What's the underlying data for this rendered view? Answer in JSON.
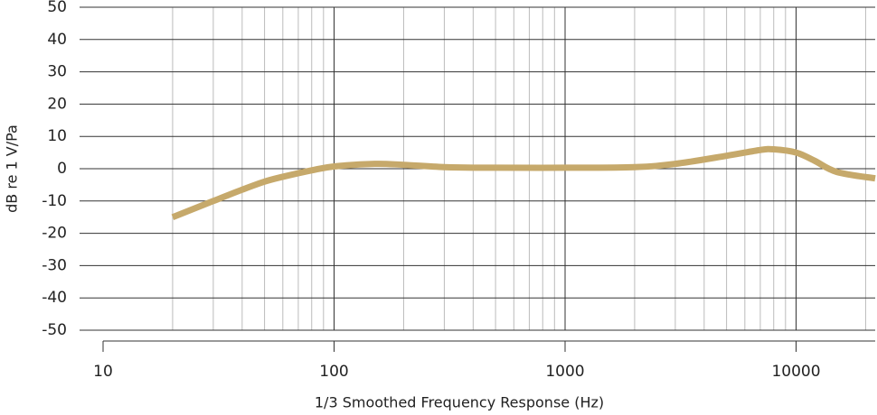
{
  "chart_data": {
    "type": "line",
    "xlabel": "1/3 Smoothed Frequency Response (Hz)",
    "ylabel": "dB re 1 V/Pa",
    "x": [
      20,
      30,
      40,
      50,
      60,
      80,
      100,
      150,
      200,
      300,
      500,
      1000,
      2000,
      3000,
      5000,
      7000,
      8000,
      10000,
      12000,
      15000,
      22000
    ],
    "series": [
      {
        "name": "Frequency response",
        "color": "#c6a96b",
        "values": [
          -15,
          -10,
          -6.5,
          -4,
          -2.5,
          -0.5,
          0.7,
          1.5,
          1.2,
          0.5,
          0.3,
          0.3,
          0.5,
          1.5,
          4,
          5.8,
          6,
          5,
          2.5,
          -1,
          -3
        ]
      }
    ],
    "xlim": [
      10,
      22000
    ],
    "xticks": [
      10,
      100,
      1000,
      10000
    ],
    "xscale": "log",
    "ylim": [
      -50,
      50
    ],
    "yticks": [
      -50,
      -40,
      -30,
      -20,
      -10,
      0,
      10,
      20,
      30,
      40,
      50
    ],
    "grid": true,
    "minor_grid": true
  }
}
